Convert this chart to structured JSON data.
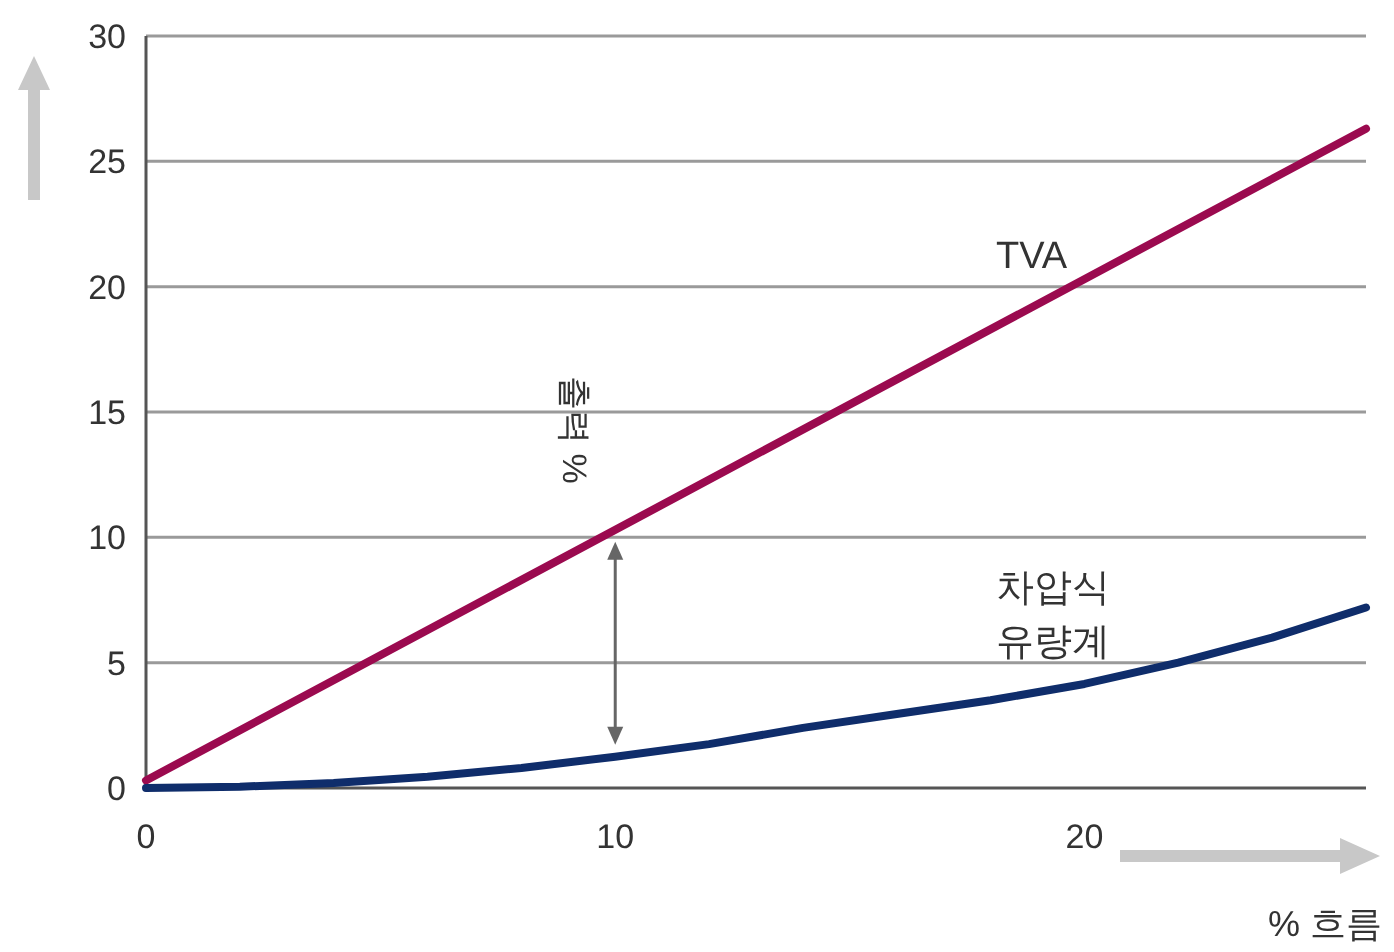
{
  "chart_data": {
    "type": "line",
    "xlabel": "% 흐름",
    "ylabel": "출력 %",
    "xlim": [
      0,
      26
    ],
    "ylim": [
      0,
      30
    ],
    "xticks": [
      0,
      10,
      20
    ],
    "yticks": [
      0,
      5,
      10,
      15,
      20,
      25,
      30
    ],
    "grid": "y",
    "marker": "none",
    "line_style": "solid",
    "series": [
      {
        "name": "TVA",
        "color": "#9b0a4f",
        "x": [
          0,
          26
        ],
        "values": [
          0.3,
          26.3
        ]
      },
      {
        "name": "차압식 유량계",
        "color": "#0f2d6b",
        "x": [
          0,
          2,
          4,
          6,
          8,
          10,
          12,
          14,
          16,
          18,
          20,
          22,
          24,
          26
        ],
        "values": [
          0,
          0.05,
          0.2,
          0.45,
          0.8,
          1.25,
          1.75,
          2.4,
          2.95,
          3.5,
          4.15,
          5.0,
          6.0,
          7.2
        ]
      }
    ]
  }
}
